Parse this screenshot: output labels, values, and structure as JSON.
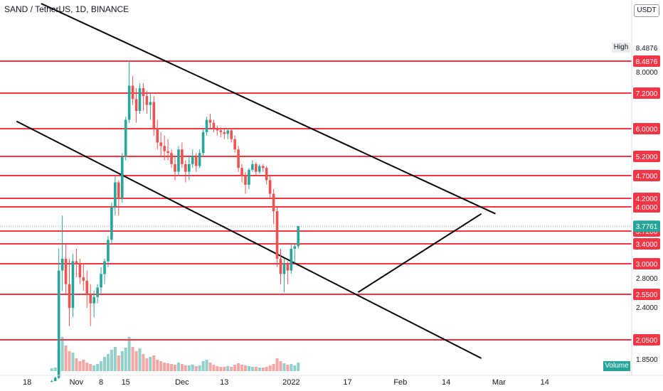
{
  "header": {
    "title": "SAND / TetherUS, 1D, BINANCE",
    "currency_button": "USDT"
  },
  "colors": {
    "up": "#26a69a",
    "down": "#ef5350",
    "level_line": "#f23645",
    "trend_line": "#000000",
    "vol_up": "#8fd1c9",
    "vol_down": "#f4a6a4"
  },
  "high_badge": {
    "label": "High",
    "value": "8.4876"
  },
  "volume_badge": "Volume",
  "chart_data": {
    "type": "candlestick",
    "title": "SAND / TetherUS, 1D, BINANCE",
    "price_axis_ticks": [
      "8.0000",
      "2.8000",
      "2.4000",
      "1.8500"
    ],
    "x_ticks": [
      {
        "label": "18",
        "day": 18
      },
      {
        "label": "Nov",
        "day": 32
      },
      {
        "label": "8",
        "day": 39
      },
      {
        "label": "15",
        "day": 46
      },
      {
        "label": "Dec",
        "day": 62
      },
      {
        "label": "13",
        "day": 74
      },
      {
        "label": "2022",
        "day": 93
      },
      {
        "label": "17",
        "day": 109
      },
      {
        "label": "Feb",
        "day": 124
      },
      {
        "label": "14",
        "day": 137
      },
      {
        "label": "Mar",
        "day": 152
      },
      {
        "label": "14",
        "day": 165
      }
    ],
    "horizontal_levels": [
      {
        "value": 8.4876,
        "label": "8.4876"
      },
      {
        "value": 7.2,
        "label": "7.2000"
      },
      {
        "value": 6.0,
        "label": "6.0000"
      },
      {
        "value": 5.2,
        "label": "5.2000"
      },
      {
        "value": 4.7,
        "label": "4.7000"
      },
      {
        "value": 4.2,
        "label": "4.2000"
      },
      {
        "value": 4.0,
        "label": "4.0000"
      },
      {
        "value": 3.72,
        "label": "3.7200"
      },
      {
        "value": 3.4,
        "label": "3.4000"
      },
      {
        "value": 3.0,
        "label": "3.0000"
      },
      {
        "value": 2.55,
        "label": "2.5500"
      },
      {
        "value": 2.05,
        "label": "2.0500"
      }
    ],
    "last_price": {
      "value": 3.7761,
      "label": "3.7761"
    },
    "trendlines": [
      {
        "from": {
          "day": 22,
          "price": 9.8
        },
        "to": {
          "day": 151,
          "price": 3.92
        }
      },
      {
        "from": {
          "day": 15,
          "price": 6.25
        },
        "to": {
          "day": 147,
          "price": 1.85
        }
      },
      {
        "from": {
          "day": 112,
          "price": 2.58
        },
        "to": {
          "day": 147,
          "price": 3.92
        }
      }
    ],
    "candles_ohlc_note": "open/high/low/close in USDT, one per day starting Oct 28",
    "candles": [
      [
        0.9,
        0.96,
        0.86,
        0.92
      ],
      [
        0.92,
        1.1,
        0.9,
        1.05
      ],
      [
        1.05,
        3.3,
        1.0,
        2.9
      ],
      [
        2.9,
        3.9,
        2.6,
        3.1
      ],
      [
        3.1,
        3.4,
        2.55,
        2.7
      ],
      [
        2.7,
        3.1,
        2.2,
        2.4
      ],
      [
        2.4,
        3.2,
        2.3,
        3.05
      ],
      [
        3.05,
        3.3,
        2.8,
        3.0
      ],
      [
        3.0,
        3.1,
        2.7,
        2.8
      ],
      [
        2.8,
        3.0,
        2.6,
        2.75
      ],
      [
        2.75,
        2.9,
        2.4,
        2.55
      ],
      [
        2.55,
        2.7,
        2.2,
        2.45
      ],
      [
        2.45,
        2.6,
        2.3,
        2.52
      ],
      [
        2.52,
        2.7,
        2.45,
        2.65
      ],
      [
        2.65,
        2.95,
        2.55,
        2.85
      ],
      [
        2.85,
        3.1,
        2.7,
        3.05
      ],
      [
        3.05,
        3.6,
        2.95,
        3.5
      ],
      [
        3.5,
        4.1,
        3.4,
        4.0
      ],
      [
        4.0,
        4.7,
        3.9,
        4.55
      ],
      [
        4.55,
        4.6,
        3.9,
        4.2
      ],
      [
        4.2,
        5.3,
        4.1,
        5.2
      ],
      [
        5.2,
        6.4,
        5.1,
        6.3
      ],
      [
        6.3,
        8.49,
        6.2,
        7.5
      ],
      [
        7.5,
        7.9,
        6.8,
        7.0
      ],
      [
        7.0,
        7.4,
        6.2,
        6.6
      ],
      [
        6.6,
        7.6,
        6.5,
        7.4
      ],
      [
        7.4,
        7.6,
        6.6,
        7.1
      ],
      [
        7.1,
        7.3,
        6.5,
        6.8
      ],
      [
        6.8,
        7.2,
        6.3,
        6.9
      ],
      [
        6.9,
        7.1,
        5.8,
        6.0
      ],
      [
        6.0,
        6.3,
        5.4,
        5.6
      ],
      [
        5.6,
        5.9,
        5.2,
        5.5
      ],
      [
        5.5,
        5.8,
        5.1,
        5.35
      ],
      [
        5.35,
        5.7,
        5.1,
        5.3
      ],
      [
        5.3,
        5.4,
        4.9,
        5.0
      ],
      [
        5.0,
        5.2,
        4.6,
        4.8
      ],
      [
        4.8,
        5.5,
        4.7,
        5.4
      ],
      [
        5.4,
        5.6,
        4.9,
        5.0
      ],
      [
        5.0,
        5.1,
        4.55,
        4.8
      ],
      [
        4.8,
        5.2,
        4.6,
        5.0
      ],
      [
        5.0,
        5.4,
        4.9,
        5.2
      ],
      [
        5.2,
        5.3,
        4.8,
        4.95
      ],
      [
        4.95,
        5.4,
        4.9,
        5.3
      ],
      [
        5.3,
        6.0,
        5.2,
        5.9
      ],
      [
        5.9,
        6.4,
        5.8,
        6.3
      ],
      [
        6.3,
        6.5,
        6.0,
        6.2
      ],
      [
        6.2,
        6.3,
        5.9,
        6.0
      ],
      [
        6.0,
        6.1,
        5.8,
        5.95
      ],
      [
        5.95,
        6.05,
        5.75,
        5.9
      ],
      [
        5.9,
        6.0,
        5.7,
        5.85
      ],
      [
        5.85,
        6.0,
        5.7,
        5.95
      ],
      [
        5.95,
        6.0,
        5.6,
        5.7
      ],
      [
        5.7,
        5.8,
        5.3,
        5.4
      ],
      [
        5.4,
        5.5,
        4.8,
        4.9
      ],
      [
        4.9,
        5.0,
        4.55,
        4.7
      ],
      [
        4.7,
        4.8,
        4.3,
        4.5
      ],
      [
        4.5,
        4.9,
        4.4,
        4.85
      ],
      [
        4.85,
        5.1,
        4.8,
        5.0
      ],
      [
        5.0,
        5.05,
        4.7,
        4.8
      ],
      [
        4.8,
        5.0,
        4.75,
        4.95
      ],
      [
        4.95,
        5.0,
        4.8,
        4.9
      ],
      [
        4.9,
        4.95,
        4.5,
        4.6
      ],
      [
        4.6,
        4.7,
        4.2,
        4.3
      ],
      [
        4.3,
        4.4,
        3.8,
        3.95
      ],
      [
        3.95,
        4.0,
        2.95,
        3.1
      ],
      [
        3.1,
        3.3,
        2.7,
        2.85
      ],
      [
        2.85,
        3.1,
        2.58,
        3.0
      ],
      [
        3.0,
        3.05,
        2.7,
        2.9
      ],
      [
        2.9,
        3.4,
        2.85,
        3.3
      ],
      [
        3.3,
        3.4,
        3.0,
        3.35
      ],
      [
        3.35,
        3.78,
        3.3,
        3.7761
      ]
    ],
    "volumes": [
      0.04,
      0.05,
      0.3,
      0.48,
      0.36,
      0.28,
      0.26,
      0.18,
      0.14,
      0.16,
      0.12,
      0.1,
      0.08,
      0.1,
      0.14,
      0.2,
      0.24,
      0.3,
      0.34,
      0.22,
      0.28,
      0.33,
      0.48,
      0.34,
      0.28,
      0.32,
      0.24,
      0.18,
      0.2,
      0.22,
      0.16,
      0.14,
      0.12,
      0.11,
      0.1,
      0.09,
      0.12,
      0.1,
      0.08,
      0.08,
      0.09,
      0.07,
      0.08,
      0.14,
      0.16,
      0.12,
      0.09,
      0.07,
      0.06,
      0.06,
      0.07,
      0.06,
      0.09,
      0.11,
      0.09,
      0.08,
      0.07,
      0.06,
      0.06,
      0.05,
      0.05,
      0.06,
      0.08,
      0.1,
      0.18,
      0.14,
      0.11,
      0.09,
      0.1,
      0.08,
      0.12
    ],
    "candle_start_day": 25
  }
}
